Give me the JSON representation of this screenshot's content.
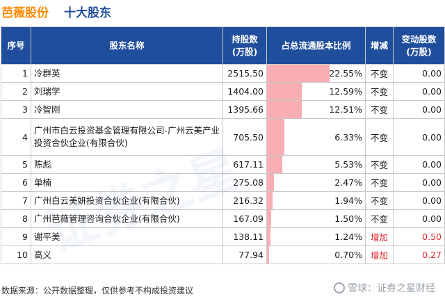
{
  "header": {
    "company": "芭薇股份",
    "section": "十大股东"
  },
  "table": {
    "columns": [
      "序号",
      "股东名称",
      "持股数\n(万股)",
      "占总流通股本比例",
      "增减",
      "变动股数\n(万股)"
    ],
    "rows": [
      {
        "idx": "1",
        "name": "冷群英",
        "shares": "2515.50",
        "ratio": "22.55%",
        "ratio_value": 22.55,
        "change": "不变",
        "delta": "0.00",
        "up": false
      },
      {
        "idx": "2",
        "name": "刘瑞学",
        "shares": "1404.00",
        "ratio": "12.59%",
        "ratio_value": 12.59,
        "change": "不变",
        "delta": "0.00",
        "up": false
      },
      {
        "idx": "3",
        "name": "冷智刚",
        "shares": "1395.66",
        "ratio": "12.51%",
        "ratio_value": 12.51,
        "change": "不变",
        "delta": "0.00",
        "up": false
      },
      {
        "idx": "4",
        "name": "广州市白云投资基金管理有限公司-广州云美产业投资合伙企业(有限合伙)",
        "shares": "705.50",
        "ratio": "6.33%",
        "ratio_value": 6.33,
        "change": "不变",
        "delta": "0.00",
        "up": false
      },
      {
        "idx": "5",
        "name": "陈彪",
        "shares": "617.11",
        "ratio": "5.53%",
        "ratio_value": 5.53,
        "change": "不变",
        "delta": "0.00",
        "up": false
      },
      {
        "idx": "6",
        "name": "单楠",
        "shares": "275.08",
        "ratio": "2.47%",
        "ratio_value": 2.47,
        "change": "不变",
        "delta": "0.00",
        "up": false
      },
      {
        "idx": "7",
        "name": "广州白云美妍投资合伙企业(有限合伙)",
        "shares": "216.32",
        "ratio": "1.94%",
        "ratio_value": 1.94,
        "change": "不变",
        "delta": "0.00",
        "up": false
      },
      {
        "idx": "8",
        "name": "广州芭薇管理咨询合伙企业(有限合伙)",
        "shares": "167.09",
        "ratio": "1.50%",
        "ratio_value": 1.5,
        "change": "不变",
        "delta": "0.00",
        "up": false
      },
      {
        "idx": "9",
        "name": "谢平美",
        "shares": "138.11",
        "ratio": "1.24%",
        "ratio_value": 1.24,
        "change": "增加",
        "delta": "0.50",
        "up": true
      },
      {
        "idx": "10",
        "name": "高义",
        "shares": "77.94",
        "ratio": "0.70%",
        "ratio_value": 0.7,
        "change": "增加",
        "delta": "0.27",
        "up": true
      }
    ]
  },
  "colors": {
    "brand_orange": "#ff8a00",
    "header_blue": "#1f4e9c",
    "bar_pink": "#f8aeb3",
    "increase_red": "#e0282e"
  },
  "watermark": "证券之星",
  "footer": {
    "source": "数据来源：公开数据整理，仅供参考不构成投资建议",
    "brand": "雪球：证券之星财经"
  }
}
